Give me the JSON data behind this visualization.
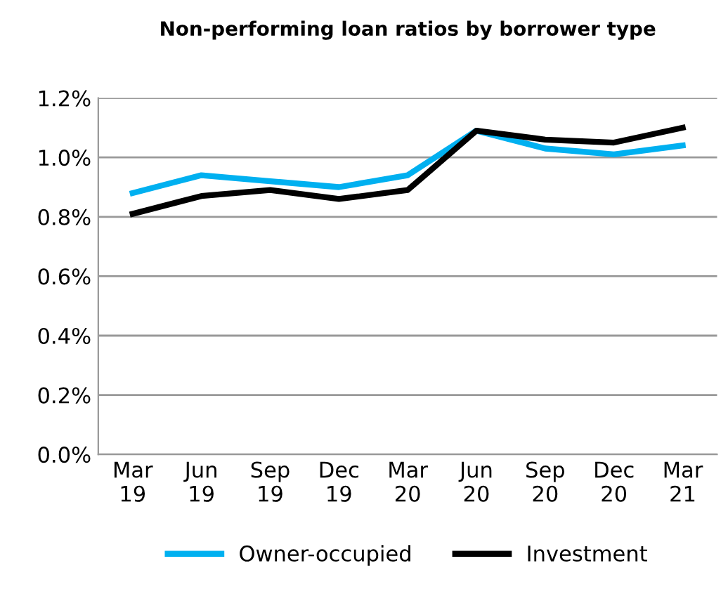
{
  "chart_data": {
    "type": "line",
    "title": "Non-performing loan ratios by borrower type",
    "categories": [
      "Mar\n19",
      "Jun\n19",
      "Sep\n19",
      "Dec\n19",
      "Mar\n20",
      "Jun\n20",
      "Sep\n20",
      "Dec\n20",
      "Mar\n21"
    ],
    "series": [
      {
        "name": "Owner-occupied",
        "color": "#00b0f0",
        "values": [
          0.88,
          0.94,
          0.92,
          0.9,
          0.94,
          1.09,
          1.03,
          1.01,
          1.04
        ]
      },
      {
        "name": "Investment",
        "color": "#000000",
        "values": [
          0.81,
          0.87,
          0.89,
          0.86,
          0.89,
          1.09,
          1.06,
          1.05,
          1.1
        ]
      }
    ],
    "ylim": [
      0,
      1.2
    ],
    "yticks": [
      {
        "value": 0,
        "label": "0.0%"
      },
      {
        "value": 0.2,
        "label": "0.2%"
      },
      {
        "value": 0.4,
        "label": "0.4%"
      },
      {
        "value": 0.6,
        "label": "0.6%"
      },
      {
        "value": 0.8,
        "label": "0.8%"
      },
      {
        "value": 1.0,
        "label": "1.0%"
      },
      {
        "value": 1.2,
        "label": "1.2%"
      }
    ],
    "grid": "y",
    "legend": "bottom",
    "marker": "none",
    "line_style": "solid"
  }
}
